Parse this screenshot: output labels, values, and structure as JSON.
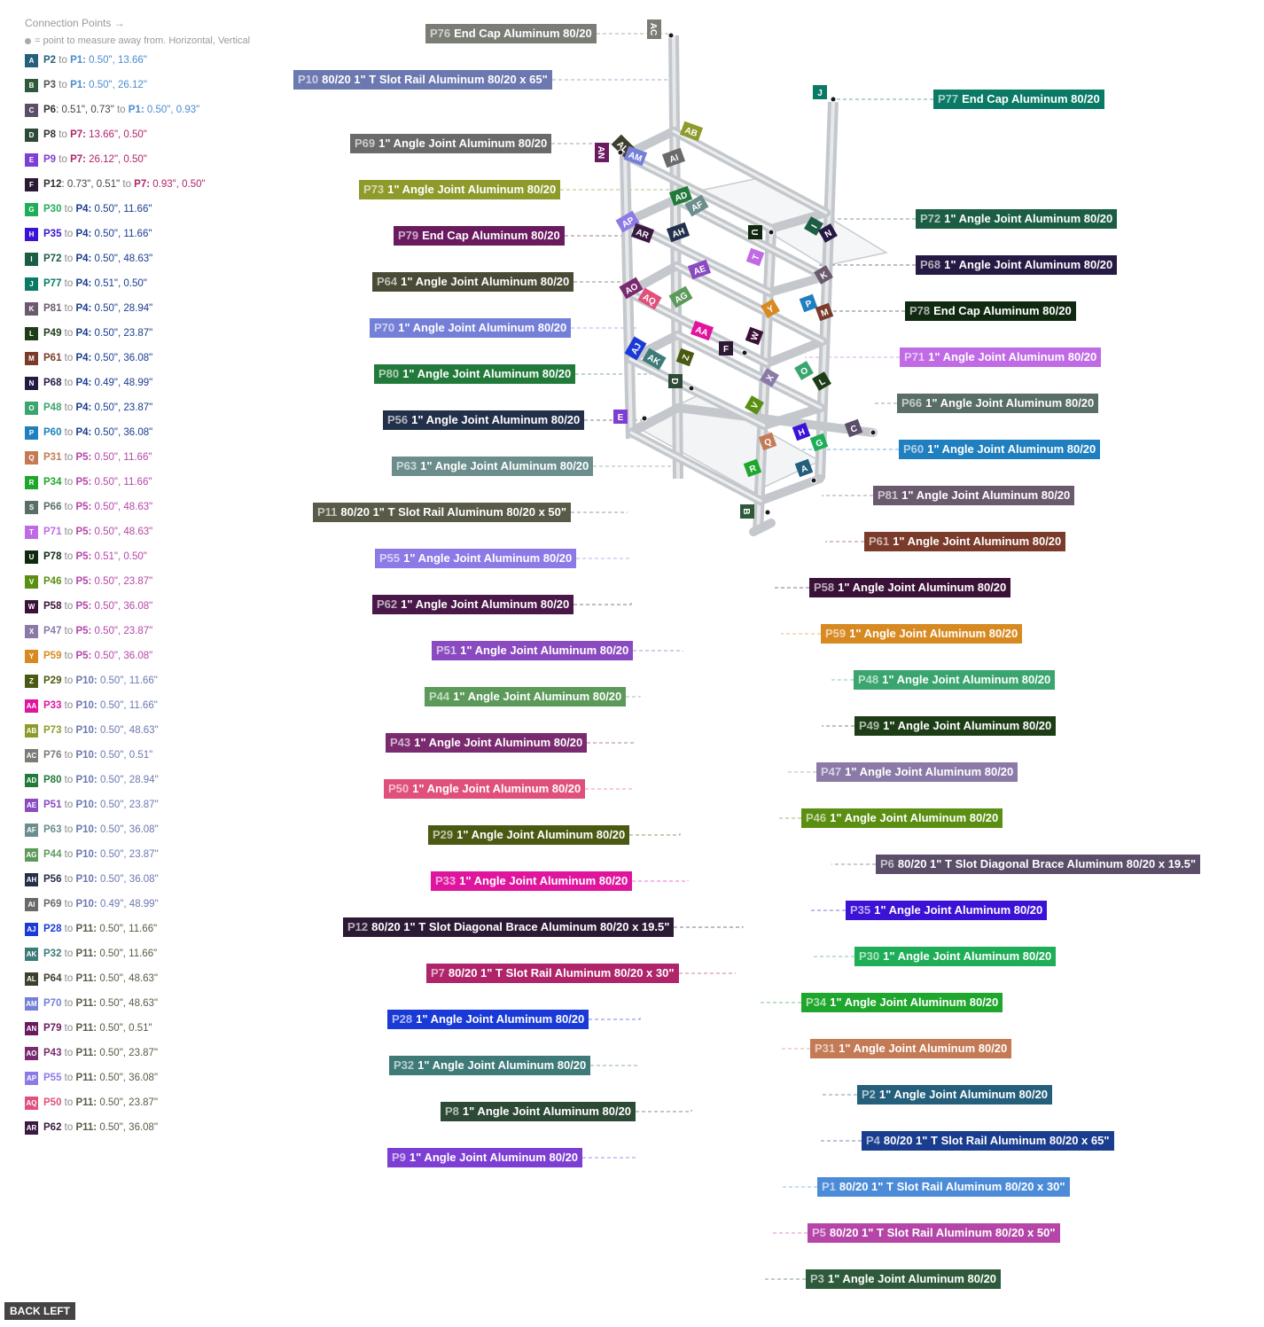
{
  "legend": {
    "heading": "Connection Points →",
    "subheading": "= point to measure away from. Horizontal, Vertical",
    "items": [
      {
        "letter": "A",
        "color": "#245f7b",
        "part": "P2",
        "to": "P1",
        "offsets": "0.50\", 13.66\"",
        "partColor": "#245f7b",
        "toColor": "#4b8bcf"
      },
      {
        "letter": "B",
        "color": "#2e5a3b",
        "part": "P3",
        "to": "P1",
        "offsets": "0.50\", 26.12\"",
        "partColor": "#555",
        "toColor": "#4b8bcf"
      },
      {
        "letter": "C",
        "color": "#5a4e68",
        "part": "P6",
        "to": "P1",
        "pre": ": 0.51\", 0.73\"",
        "offsets": "0.50\", 0.93\"",
        "partColor": "#333",
        "toColor": "#4b8bcf"
      },
      {
        "letter": "D",
        "color": "#2d4a36",
        "part": "P8",
        "to": "P7",
        "offsets": "13.66\", 0.50\"",
        "partColor": "#333",
        "toColor": "#b0246a"
      },
      {
        "letter": "E",
        "color": "#7d3ed4",
        "part": "P9",
        "to": "P7",
        "offsets": "26.12\", 0.50\"",
        "partColor": "#7d3ed4",
        "toColor": "#b0246a"
      },
      {
        "letter": "F",
        "color": "#2c1a35",
        "part": "P12",
        "to": "P7",
        "pre": ": 0.73\", 0.51\"",
        "offsets": "0.93\", 0.50\"",
        "partColor": "#333",
        "toColor": "#b0246a"
      },
      {
        "letter": "G",
        "color": "#1fae58",
        "part": "P30",
        "to": "P4",
        "offsets": "0.50\", 11.66\"",
        "partColor": "#1fae58",
        "toColor": "#1a3d8f"
      },
      {
        "letter": "H",
        "color": "#3b12d6",
        "part": "P35",
        "to": "P4",
        "offsets": "0.50\", 11.66\"",
        "partColor": "#3b12d6",
        "toColor": "#1a3d8f"
      },
      {
        "letter": "I",
        "color": "#1c5e44",
        "part": "P72",
        "to": "P4",
        "offsets": "0.50\", 48.63\"",
        "partColor": "#1c5e44",
        "toColor": "#1a3d8f"
      },
      {
        "letter": "J",
        "color": "#0a7a66",
        "part": "P77",
        "to": "P4",
        "offsets": "0.51\", 0.50\"",
        "partColor": "#0a7a66",
        "toColor": "#1a3d8f"
      },
      {
        "letter": "K",
        "color": "#6b5a6e",
        "part": "P81",
        "to": "P4",
        "offsets": "0.50\", 28.94\"",
        "partColor": "#6b5a6e",
        "toColor": "#1a3d8f"
      },
      {
        "letter": "L",
        "color": "#1d3d16",
        "part": "P49",
        "to": "P4",
        "offsets": "0.50\", 23.87\"",
        "partColor": "#1d3d16",
        "toColor": "#1a3d8f"
      },
      {
        "letter": "M",
        "color": "#7a3b2a",
        "part": "P61",
        "to": "P4",
        "offsets": "0.50\", 36.08\"",
        "partColor": "#7a3b2a",
        "toColor": "#1a3d8f"
      },
      {
        "letter": "N",
        "color": "#261a44",
        "part": "P68",
        "to": "P4",
        "offsets": "0.49\", 48.99\"",
        "partColor": "#261a44",
        "toColor": "#1a3d8f"
      },
      {
        "letter": "O",
        "color": "#3aa56e",
        "part": "P48",
        "to": "P4",
        "offsets": "0.50\", 23.87\"",
        "partColor": "#3aa56e",
        "toColor": "#1a3d8f"
      },
      {
        "letter": "P",
        "color": "#1f7fbf",
        "part": "P60",
        "to": "P4",
        "offsets": "0.50\", 36.08\"",
        "partColor": "#1f7fbf",
        "toColor": "#1a3d8f"
      },
      {
        "letter": "Q",
        "color": "#c47a55",
        "part": "P31",
        "to": "P5",
        "offsets": "0.50\", 11.66\"",
        "partColor": "#c47a55",
        "toColor": "#b546a8"
      },
      {
        "letter": "R",
        "color": "#1fa62c",
        "part": "P34",
        "to": "P5",
        "offsets": "0.50\", 11.66\"",
        "partColor": "#1fa62c",
        "toColor": "#b546a8"
      },
      {
        "letter": "S",
        "color": "#596e66",
        "part": "P66",
        "to": "P5",
        "offsets": "0.50\", 48.63\"",
        "partColor": "#596e66",
        "toColor": "#b546a8"
      },
      {
        "letter": "T",
        "color": "#c06ae6",
        "part": "P71",
        "to": "P5",
        "offsets": "0.50\", 48.63\"",
        "partColor": "#c06ae6",
        "toColor": "#b546a8"
      },
      {
        "letter": "U",
        "color": "#102a12",
        "part": "P78",
        "to": "P5",
        "offsets": "0.51\", 0.50\"",
        "partColor": "#102a12",
        "toColor": "#b546a8"
      },
      {
        "letter": "V",
        "color": "#5a8f12",
        "part": "P46",
        "to": "P5",
        "offsets": "0.50\", 23.87\"",
        "partColor": "#5a8f12",
        "toColor": "#b546a8"
      },
      {
        "letter": "W",
        "color": "#3a1238",
        "part": "P58",
        "to": "P5",
        "offsets": "0.50\", 36.08\"",
        "partColor": "#3a1238",
        "toColor": "#b546a8"
      },
      {
        "letter": "X",
        "color": "#8b7aa8",
        "part": "P47",
        "to": "P5",
        "offsets": "0.50\", 23.87\"",
        "partColor": "#8b7aa8",
        "toColor": "#b546a8"
      },
      {
        "letter": "Y",
        "color": "#d88a22",
        "part": "P59",
        "to": "P5",
        "offsets": "0.50\", 36.08\"",
        "partColor": "#d88a22",
        "toColor": "#b546a8"
      },
      {
        "letter": "Z",
        "color": "#4a5a12",
        "part": "P29",
        "to": "P10",
        "offsets": "0.50\", 11.66\"",
        "partColor": "#4a5a12",
        "toColor": "#6c78b0"
      },
      {
        "letter": "AA",
        "color": "#e0159e",
        "part": "P33",
        "to": "P10",
        "offsets": "0.50\", 11.66\"",
        "partColor": "#e0159e",
        "toColor": "#6c78b0"
      },
      {
        "letter": "AB",
        "color": "#8e9a2a",
        "part": "P73",
        "to": "P10",
        "offsets": "0.50\", 48.63\"",
        "partColor": "#8e9a2a",
        "toColor": "#6c78b0"
      },
      {
        "letter": "AC",
        "color": "#7a7d76",
        "part": "P76",
        "to": "P10",
        "offsets": "0.50\", 0.51\"",
        "partColor": "#7a7d76",
        "toColor": "#6c78b0"
      },
      {
        "letter": "AD",
        "color": "#227a3a",
        "part": "P80",
        "to": "P10",
        "offsets": "0.50\", 28.94\"",
        "partColor": "#227a3a",
        "toColor": "#6c78b0"
      },
      {
        "letter": "AE",
        "color": "#8a4ac0",
        "part": "P51",
        "to": "P10",
        "offsets": "0.50\", 23.87\"",
        "partColor": "#8a4ac0",
        "toColor": "#6c78b0"
      },
      {
        "letter": "AF",
        "color": "#6b8e8c",
        "part": "P63",
        "to": "P10",
        "offsets": "0.50\", 36.08\"",
        "partColor": "#6b8e8c",
        "toColor": "#6c78b0"
      },
      {
        "letter": "AG",
        "color": "#5c9a5a",
        "part": "P44",
        "to": "P10",
        "offsets": "0.50\", 23.87\"",
        "partColor": "#5c9a5a",
        "toColor": "#6c78b0"
      },
      {
        "letter": "AH",
        "color": "#23304a",
        "part": "P56",
        "to": "P10",
        "offsets": "0.50\", 36.08\"",
        "partColor": "#23304a",
        "toColor": "#6c78b0"
      },
      {
        "letter": "AI",
        "color": "#6a6a6a",
        "part": "P69",
        "to": "P10",
        "offsets": "0.49\", 48.99\"",
        "partColor": "#6a6a6a",
        "toColor": "#6c78b0"
      },
      {
        "letter": "AJ",
        "color": "#1a3ad8",
        "part": "P28",
        "to": "P11",
        "offsets": "0.50\", 11.66\"",
        "partColor": "#1a3ad8",
        "toColor": "#5a5a48"
      },
      {
        "letter": "AK",
        "color": "#3d7a78",
        "part": "P32",
        "to": "P11",
        "offsets": "0.50\", 11.66\"",
        "partColor": "#3d7a78",
        "toColor": "#5a5a48"
      },
      {
        "letter": "AL",
        "color": "#3f3f2e",
        "part": "P64",
        "to": "P11",
        "offsets": "0.50\", 48.63\"",
        "partColor": "#3f3f2e",
        "toColor": "#5a5a48"
      },
      {
        "letter": "AM",
        "color": "#7480d8",
        "part": "P70",
        "to": "P11",
        "offsets": "0.50\", 48.63\"",
        "partColor": "#7480d8",
        "toColor": "#5a5a48"
      },
      {
        "letter": "AN",
        "color": "#6a1a5e",
        "part": "P79",
        "to": "P11",
        "offsets": "0.50\", 0.51\"",
        "partColor": "#6a1a5e",
        "toColor": "#5a5a48"
      },
      {
        "letter": "AO",
        "color": "#7a2a6e",
        "part": "P43",
        "to": "P11",
        "offsets": "0.50\", 23.87\"",
        "partColor": "#7a2a6e",
        "toColor": "#5a5a48"
      },
      {
        "letter": "AP",
        "color": "#8e7ae6",
        "part": "P55",
        "to": "P11",
        "offsets": "0.50\", 36.08\"",
        "partColor": "#8e7ae6",
        "toColor": "#5a5a48"
      },
      {
        "letter": "AQ",
        "color": "#e0507a",
        "part": "P50",
        "to": "P11",
        "offsets": "0.50\", 23.87\"",
        "partColor": "#e0507a",
        "toColor": "#5a5a48"
      },
      {
        "letter": "AR",
        "color": "#3a1a42",
        "part": "P62",
        "to": "P11",
        "offsets": "0.50\", 36.08\"",
        "partColor": "#3a1a42",
        "toColor": "#5a5a48"
      }
    ]
  },
  "part_labels": [
    {
      "id": "P76",
      "name": "End Cap Aluminum 80/20",
      "color": "#7a7d76"
    },
    {
      "id": "P10",
      "name": "80/20 1\" T Slot Rail Aluminum 80/20 x 65\"",
      "color": "#6c78b0"
    },
    {
      "id": "P69",
      "name": "1\" Angle Joint Aluminum 80/20",
      "color": "#6a6a6a"
    },
    {
      "id": "P73",
      "name": "1\" Angle Joint Aluminum 80/20",
      "color": "#8e9a2a"
    },
    {
      "id": "P79",
      "name": "End Cap Aluminum 80/20",
      "color": "#6a1a5e"
    },
    {
      "id": "P64",
      "name": "1\" Angle Joint Aluminum 80/20",
      "color": "#4a4a36"
    },
    {
      "id": "P70",
      "name": "1\" Angle Joint Aluminum 80/20",
      "color": "#7480d8"
    },
    {
      "id": "P80",
      "name": "1\" Angle Joint Aluminum 80/20",
      "color": "#227a3a"
    },
    {
      "id": "P56",
      "name": "1\" Angle Joint Aluminum 80/20",
      "color": "#23304a"
    },
    {
      "id": "P63",
      "name": "1\" Angle Joint Aluminum 80/20",
      "color": "#6b8e8c"
    },
    {
      "id": "P11",
      "name": "80/20 1\" T Slot Rail Aluminum 80/20 x 50\"",
      "color": "#5a5a48"
    },
    {
      "id": "P55",
      "name": "1\" Angle Joint Aluminum 80/20",
      "color": "#8e7ae6"
    },
    {
      "id": "P62",
      "name": "1\" Angle Joint Aluminum 80/20",
      "color": "#4a1848"
    },
    {
      "id": "P51",
      "name": "1\" Angle Joint Aluminum 80/20",
      "color": "#8a4ac0"
    },
    {
      "id": "P44",
      "name": "1\" Angle Joint Aluminum 80/20",
      "color": "#5c9a5a"
    },
    {
      "id": "P43",
      "name": "1\" Angle Joint Aluminum 80/20",
      "color": "#7a2a6e"
    },
    {
      "id": "P50",
      "name": "1\" Angle Joint Aluminum 80/20",
      "color": "#e0507a"
    },
    {
      "id": "P29",
      "name": "1\" Angle Joint Aluminum 80/20",
      "color": "#4a5a12"
    },
    {
      "id": "P33",
      "name": "1\" Angle Joint Aluminum 80/20",
      "color": "#e0159e"
    },
    {
      "id": "P12",
      "name": "80/20 1\" T Slot Diagonal Brace  Aluminum 80/20 x 19.5\"",
      "color": "#2c1a35"
    },
    {
      "id": "P7",
      "name": "80/20 1\" T Slot Rail Aluminum 80/20 x 30\"",
      "color": "#b0246a"
    },
    {
      "id": "P28",
      "name": "1\" Angle Joint Aluminum 80/20",
      "color": "#1a3ad8"
    },
    {
      "id": "P32",
      "name": "1\" Angle Joint Aluminum 80/20",
      "color": "#3d7a78"
    },
    {
      "id": "P8",
      "name": "1\" Angle Joint Aluminum 80/20",
      "color": "#2d4a36"
    },
    {
      "id": "P9",
      "name": "1\" Angle Joint Aluminum 80/20",
      "color": "#7d3ed4"
    },
    {
      "id": "P77",
      "name": "End Cap Aluminum 80/20",
      "color": "#0a7a66"
    },
    {
      "id": "P72",
      "name": "1\" Angle Joint Aluminum 80/20",
      "color": "#1c5e44"
    },
    {
      "id": "P68",
      "name": "1\" Angle Joint Aluminum 80/20",
      "color": "#261a44"
    },
    {
      "id": "P78",
      "name": "End Cap Aluminum 80/20",
      "color": "#102a12"
    },
    {
      "id": "P71",
      "name": "1\" Angle Joint Aluminum 80/20",
      "color": "#c06ae6"
    },
    {
      "id": "P66",
      "name": "1\" Angle Joint Aluminum 80/20",
      "color": "#596e66"
    },
    {
      "id": "P60",
      "name": "1\" Angle Joint Aluminum 80/20",
      "color": "#1f7fbf"
    },
    {
      "id": "P81",
      "name": "1\" Angle Joint Aluminum 80/20",
      "color": "#6b5a6e"
    },
    {
      "id": "P61",
      "name": "1\" Angle Joint Aluminum 80/20",
      "color": "#7a3b2a"
    },
    {
      "id": "P58",
      "name": "1\" Angle Joint Aluminum 80/20",
      "color": "#3a1238"
    },
    {
      "id": "P59",
      "name": "1\" Angle Joint Aluminum 80/20",
      "color": "#d88a22"
    },
    {
      "id": "P48",
      "name": "1\" Angle Joint Aluminum 80/20",
      "color": "#3aa56e"
    },
    {
      "id": "P49",
      "name": "1\" Angle Joint Aluminum 80/20",
      "color": "#1d3d16"
    },
    {
      "id": "P47",
      "name": "1\" Angle Joint Aluminum 80/20",
      "color": "#8b7aa8"
    },
    {
      "id": "P46",
      "name": "1\" Angle Joint Aluminum 80/20",
      "color": "#5a8f12"
    },
    {
      "id": "P6",
      "name": "80/20 1\" T Slot Diagonal Brace  Aluminum 80/20 x 19.5\"",
      "color": "#5a4e68"
    },
    {
      "id": "P35",
      "name": "1\" Angle Joint Aluminum 80/20",
      "color": "#3b12d6"
    },
    {
      "id": "P30",
      "name": "1\" Angle Joint Aluminum 80/20",
      "color": "#1fae58"
    },
    {
      "id": "P34",
      "name": "1\" Angle Joint Aluminum 80/20",
      "color": "#1fa62c"
    },
    {
      "id": "P31",
      "name": "1\" Angle Joint Aluminum 80/20",
      "color": "#c47a55"
    },
    {
      "id": "P2",
      "name": "1\" Angle Joint Aluminum 80/20",
      "color": "#245f7b"
    },
    {
      "id": "P4",
      "name": "80/20 1\" T Slot Rail Aluminum 80/20 x 65\"",
      "color": "#1a3d8f"
    },
    {
      "id": "P1",
      "name": "80/20 1\" T Slot Rail Aluminum 80/20 x 30\"",
      "color": "#4b8bd8"
    },
    {
      "id": "P5",
      "name": "80/20 1\" T Slot Rail Aluminum 80/20 x 50\"",
      "color": "#b546a8"
    },
    {
      "id": "P3",
      "name": "1\" Angle Joint Aluminum 80/20",
      "color": "#2e5a3b"
    }
  ],
  "model_badges": [
    {
      "letter": "AC",
      "color": "#7a7d76"
    },
    {
      "letter": "J",
      "color": "#0a7a66"
    },
    {
      "letter": "AB",
      "color": "#8e9a2a"
    },
    {
      "letter": "AN",
      "color": "#6a1a5e"
    },
    {
      "letter": "AL",
      "color": "#3f3f2e"
    },
    {
      "letter": "AM",
      "color": "#7480d8"
    },
    {
      "letter": "AI",
      "color": "#6a6a6a"
    },
    {
      "letter": "AD",
      "color": "#227a3a"
    },
    {
      "letter": "AF",
      "color": "#6b8e8c"
    },
    {
      "letter": "AP",
      "color": "#8e7ae6"
    },
    {
      "letter": "AR",
      "color": "#3a1a42"
    },
    {
      "letter": "AH",
      "color": "#23304a"
    },
    {
      "letter": "U",
      "color": "#102a12"
    },
    {
      "letter": "I",
      "color": "#1c5e44"
    },
    {
      "letter": "N",
      "color": "#261a44"
    },
    {
      "letter": "T",
      "color": "#c06ae6"
    },
    {
      "letter": "AE",
      "color": "#8a4ac0"
    },
    {
      "letter": "K",
      "color": "#6b5a6e"
    },
    {
      "letter": "AO",
      "color": "#7a2a6e"
    },
    {
      "letter": "AQ",
      "color": "#e0507a"
    },
    {
      "letter": "AG",
      "color": "#5c9a5a"
    },
    {
      "letter": "P",
      "color": "#1f7fbf"
    },
    {
      "letter": "M",
      "color": "#7a3b2a"
    },
    {
      "letter": "Y",
      "color": "#d88a22"
    },
    {
      "letter": "AA",
      "color": "#e0159e"
    },
    {
      "letter": "W",
      "color": "#3a1238"
    },
    {
      "letter": "F",
      "color": "#2c1a35"
    },
    {
      "letter": "AJ",
      "color": "#1a3ad8"
    },
    {
      "letter": "AK",
      "color": "#3d7a78"
    },
    {
      "letter": "Z",
      "color": "#4a5a12"
    },
    {
      "letter": "D",
      "color": "#2d4a36"
    },
    {
      "letter": "O",
      "color": "#3aa56e"
    },
    {
      "letter": "L",
      "color": "#1d3d16"
    },
    {
      "letter": "X",
      "color": "#8b7aa8"
    },
    {
      "letter": "V",
      "color": "#5a8f12"
    },
    {
      "letter": "E",
      "color": "#7d3ed4"
    },
    {
      "letter": "C",
      "color": "#5a4e68"
    },
    {
      "letter": "H",
      "color": "#3b12d6"
    },
    {
      "letter": "G",
      "color": "#1fae58"
    },
    {
      "letter": "Q",
      "color": "#c47a55"
    },
    {
      "letter": "R",
      "color": "#1fa62c"
    },
    {
      "letter": "A",
      "color": "#245f7b"
    },
    {
      "letter": "B",
      "color": "#2e5a3b"
    }
  ],
  "back_button": "BACK LEFT"
}
